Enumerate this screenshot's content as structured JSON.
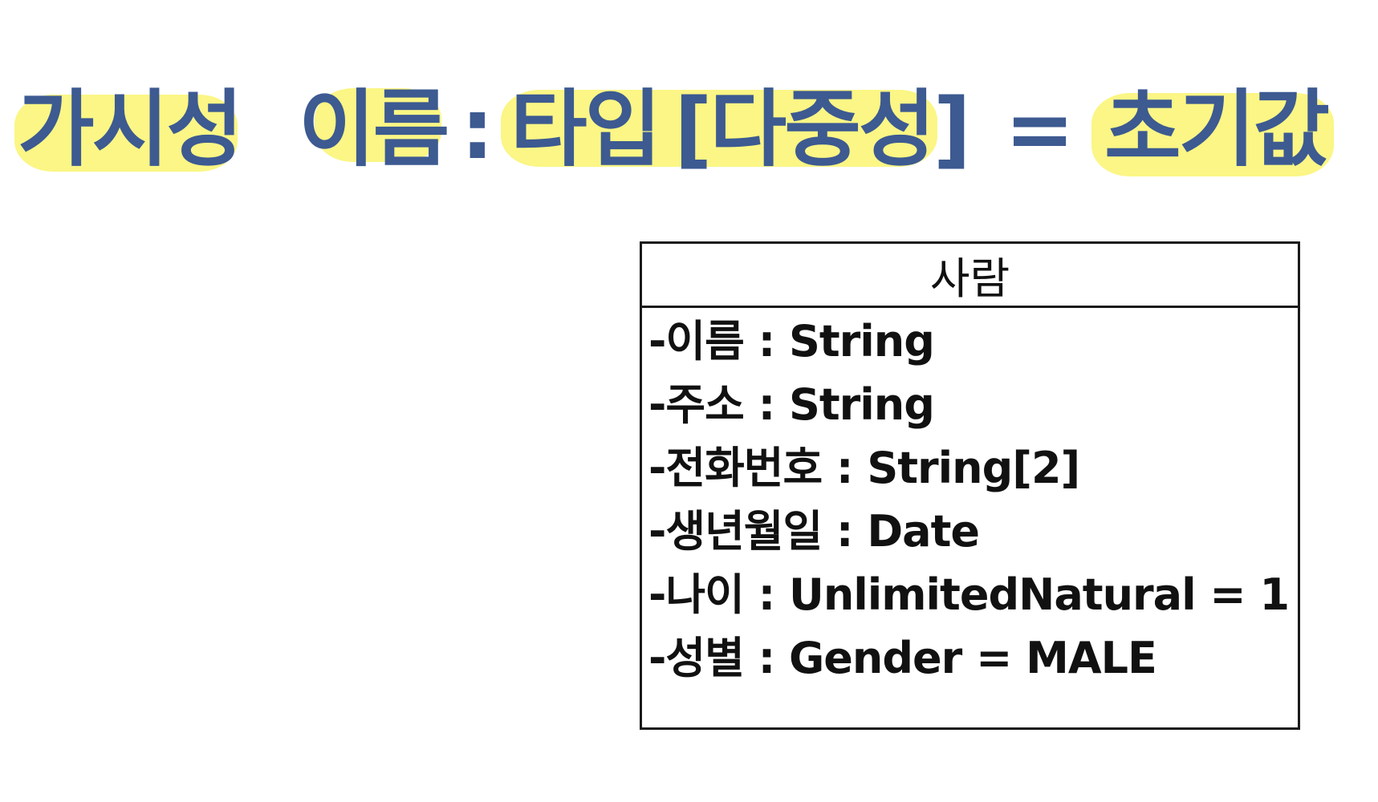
{
  "syntax": {
    "visibility": "가시성",
    "name": "이름",
    "colon": ":",
    "type": "타입",
    "multiplicity": "[다중성]",
    "equals": "=",
    "default": "초기값",
    "text_color": "#3d5a91",
    "highlight_color": "#fbf67e"
  },
  "uml_class": {
    "name": "사람",
    "attributes": [
      "-이름 : String",
      "-주소 : String",
      "-전화번호 : String[2]",
      "-생년월일 : Date",
      "-나이 : UnlimitedNatural = 1",
      "-성별 : Gender = MALE"
    ]
  }
}
